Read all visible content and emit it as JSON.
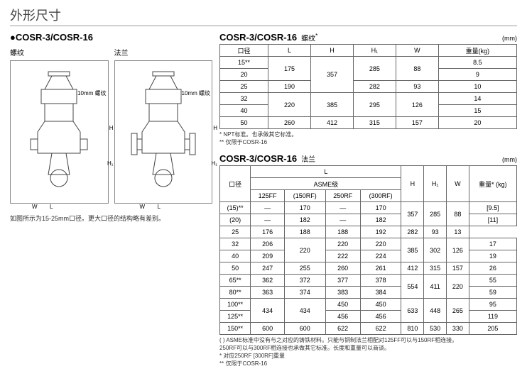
{
  "page_title": "外形尺寸",
  "model_heading": "●COSR-3/COSR-16",
  "diagrams": {
    "left_label": "螺纹",
    "right_label": "法兰",
    "thread_label": "10mm\n螺纹",
    "dims": [
      "L",
      "W",
      "H",
      "H₁"
    ],
    "caption": "如图所示为15-25mm口径。更大口径的结构略有差别。"
  },
  "table1": {
    "model": "COSR-3/COSR-16",
    "type": "螺纹",
    "type_sup": "*",
    "unit": "(mm)",
    "headers": [
      "口径",
      "L",
      "H",
      "H₁",
      "W",
      "重量(kg)"
    ],
    "rows": [
      [
        "15**",
        "175",
        "357",
        "285",
        "88",
        "8.5"
      ],
      [
        "20",
        "",
        "",
        "",
        "",
        "9"
      ],
      [
        "25",
        "190",
        "",
        "282",
        "93",
        "10"
      ],
      [
        "32",
        "220",
        "385",
        "295",
        "126",
        "14"
      ],
      [
        "40",
        "",
        "",
        "",
        "",
        "15"
      ],
      [
        "50",
        "260",
        "412",
        "315",
        "157",
        "20"
      ]
    ],
    "rowspans": {
      "r0": {
        "1": 2,
        "2": 3,
        "3": 2,
        "4": 2
      },
      "r3": {
        "1": 2,
        "2": 2,
        "3": 2,
        "4": 2
      }
    },
    "footnotes": [
      "* NPT标准。也承做其它标准。",
      "** 仅限于COSR-16"
    ]
  },
  "table2": {
    "model": "COSR-3/COSR-16",
    "type": "法兰",
    "unit": "(mm)",
    "h_top": [
      "口径",
      "L",
      "H",
      "H₁",
      "W",
      "重量*\n(kg)"
    ],
    "h_mid": "ASME级",
    "h_sub": [
      "125FF",
      "(150RF)",
      "250RF",
      "(300RF)"
    ],
    "rows": [
      [
        "(15)**",
        "—",
        "170",
        "—",
        "170",
        "357",
        "285",
        "88",
        "[9.5]"
      ],
      [
        "(20)",
        "—",
        "182",
        "—",
        "182",
        "",
        "",
        "",
        "[11]"
      ],
      [
        "25",
        "176",
        "188",
        "188",
        "192",
        "",
        "282",
        "93",
        "13"
      ],
      [
        "32",
        "206",
        "220",
        "220",
        "220",
        "385",
        "302",
        "126",
        "17"
      ],
      [
        "40",
        "209",
        "",
        "222",
        "224",
        "",
        "",
        "",
        "19"
      ],
      [
        "50",
        "247",
        "255",
        "260",
        "261",
        "412",
        "315",
        "157",
        "26"
      ],
      [
        "65**",
        "362",
        "372",
        "377",
        "378",
        "554",
        "411",
        "220",
        "55"
      ],
      [
        "80**",
        "363",
        "374",
        "383",
        "384",
        "",
        "",
        "",
        "59"
      ],
      [
        "100**",
        "434",
        "434",
        "450",
        "450",
        "633",
        "448",
        "265",
        "95"
      ],
      [
        "125**",
        "",
        "",
        "456",
        "456",
        "",
        "",
        "",
        "119"
      ],
      [
        "150**",
        "600",
        "600",
        "622",
        "622",
        "810",
        "530",
        "330",
        "205"
      ]
    ],
    "merges": {
      "r0": {
        "5": 2,
        "6": 2,
        "7": 2
      },
      "r3": {
        "2": 2,
        "5": 2,
        "6": 2,
        "7": 2
      },
      "r6": {
        "5": 2,
        "6": 2,
        "7": 2
      },
      "r8": {
        "1": 2,
        "2": 2,
        "5": 2,
        "6": 2,
        "7": 2
      }
    },
    "footnotes": [
      "( ) ASME标准中没有与之对应的铸铁材料。只能与铜制法兰相配对125FF可以与150RF相连接。",
      "250RF可以与300RF相连接也承做其它标准。长度和重量可以商谈。",
      "* 对应250RF [300RF]重量",
      "** 仅限于COSR-16"
    ]
  }
}
